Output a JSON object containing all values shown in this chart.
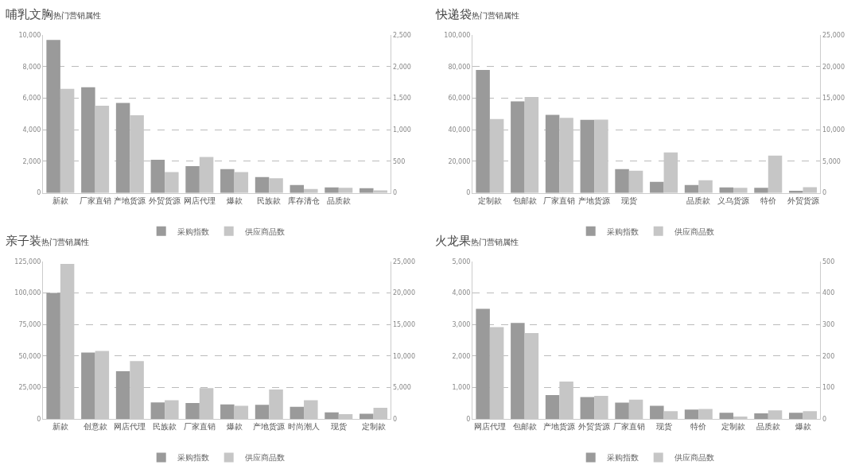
{
  "chart_data": [
    {
      "type": "bar",
      "title": "哺乳文胸",
      "subtitle": "热门营销属性",
      "categories": [
        "新款",
        "厂家直销",
        "产地货源",
        "外贸货源",
        "网店代理",
        "爆款",
        "民族款",
        "库存清仓",
        "品质款",
        null
      ],
      "series": [
        {
          "name": "采购指数",
          "color": "#9a9a9a",
          "values": [
            9700,
            6700,
            5700,
            2100,
            1700,
            1500,
            1000,
            500,
            350,
            300
          ]
        },
        {
          "name": "供应商品数",
          "color": "#c6c6c6",
          "axis": "y2",
          "values": [
            1650,
            1380,
            1230,
            330,
            570,
            330,
            230,
            60,
            80,
            40
          ]
        }
      ],
      "ylim": [
        0,
        10000
      ],
      "yticks": [
        0,
        {
          "value": 2000,
          "label": "2,000"
        },
        {
          "value": 4000,
          "label": "4,000"
        },
        {
          "value": 6000,
          "label": "6,000"
        },
        {
          "value": 8000,
          "label": "8,000"
        },
        {
          "value": 10000,
          "label": "10,000"
        }
      ],
      "y2lim": [
        0,
        2500
      ],
      "y2ticks": [
        0,
        500,
        {
          "value": 1000,
          "label": "1,000"
        },
        {
          "value": 1500,
          "label": "1,500"
        },
        {
          "value": 2000,
          "label": "2,000"
        },
        {
          "value": 2500,
          "label": "2,500"
        }
      ],
      "grid": "y",
      "legend": "bottom"
    },
    {
      "type": "bar",
      "title": "快递袋",
      "subtitle": "热门营销属性",
      "categories": [
        "定制款",
        "包邮款",
        "厂家直销",
        "产地货源",
        "现货",
        null,
        "品质款",
        "义乌货源",
        "特价",
        "外贸货源"
      ],
      "series": [
        {
          "name": "采购指数",
          "color": "#9a9a9a",
          "values": [
            78000,
            58000,
            49500,
            46300,
            15000,
            7000,
            5000,
            3500,
            3200,
            1300
          ]
        },
        {
          "name": "供应商品数",
          "color": "#c6c6c6",
          "axis": "y2",
          "values": [
            11700,
            15200,
            11900,
            11600,
            3500,
            6400,
            2000,
            800,
            5900,
            900
          ]
        }
      ],
      "ylim": [
        0,
        100000
      ],
      "yticks": [
        0,
        {
          "value": 20000,
          "label": "20,000"
        },
        {
          "value": 40000,
          "label": "40,000"
        },
        {
          "value": 60000,
          "label": "60,000"
        },
        {
          "value": 80000,
          "label": "80,000"
        },
        {
          "value": 100000,
          "label": "100,000"
        }
      ],
      "y2lim": [
        0,
        25000
      ],
      "y2ticks": [
        0,
        {
          "value": 5000,
          "label": "5,000"
        },
        {
          "value": 10000,
          "label": "10,000"
        },
        {
          "value": 15000,
          "label": "15,000"
        },
        {
          "value": 20000,
          "label": "20,000"
        },
        {
          "value": 25000,
          "label": "25,000"
        }
      ],
      "grid": "y",
      "legend": "bottom"
    },
    {
      "type": "bar",
      "title": "亲子装",
      "subtitle": "热门营销属性",
      "categories": [
        "新款",
        "创意款",
        "网店代理",
        "民族款",
        "厂家直销",
        "爆款",
        "产地货源",
        "时尚潮人",
        "现货",
        "定制款"
      ],
      "series": [
        {
          "name": "采购指数",
          "color": "#9a9a9a",
          "values": [
            100000,
            52800,
            38000,
            13300,
            12700,
            11700,
            11300,
            9700,
            5300,
            4200
          ]
        },
        {
          "name": "供应商品数",
          "color": "#c6c6c6",
          "axis": "y2",
          "values": [
            24600,
            10800,
            9200,
            3000,
            4900,
            2100,
            4700,
            3000,
            800,
            1800
          ]
        }
      ],
      "ylim": [
        0,
        125000
      ],
      "yticks": [
        0,
        {
          "value": 25000,
          "label": "25,000"
        },
        {
          "value": 50000,
          "label": "50,000"
        },
        {
          "value": 75000,
          "label": "75,000"
        },
        {
          "value": 100000,
          "label": "100,000"
        },
        {
          "value": 125000,
          "label": "125,000"
        }
      ],
      "y2lim": [
        0,
        25000
      ],
      "y2ticks": [
        0,
        {
          "value": 5000,
          "label": "5,000"
        },
        {
          "value": 10000,
          "label": "10,000"
        },
        {
          "value": 15000,
          "label": "15,000"
        },
        {
          "value": 20000,
          "label": "20,000"
        },
        {
          "value": 25000,
          "label": "25,000"
        }
      ],
      "grid": "y",
      "legend": "bottom"
    },
    {
      "type": "bar",
      "title": "火龙果",
      "subtitle": "热门营销属性",
      "categories": [
        "网店代理",
        "包邮款",
        "产地货源",
        "外贸货源",
        "厂家直销",
        "现货",
        "特价",
        "定制款",
        "品质款",
        "爆款"
      ],
      "series": [
        {
          "name": "采购指数",
          "color": "#9a9a9a",
          "values": [
            3500,
            3050,
            760,
            700,
            520,
            420,
            300,
            200,
            180,
            200
          ]
        },
        {
          "name": "供应商品数",
          "color": "#c6c6c6",
          "axis": "y2",
          "values": [
            292,
            273,
            119,
            74,
            62,
            25,
            32,
            8,
            28,
            25
          ]
        }
      ],
      "ylim": [
        0,
        5000
      ],
      "yticks": [
        0,
        {
          "value": 1000,
          "label": "1,000"
        },
        {
          "value": 2000,
          "label": "2,000"
        },
        {
          "value": 3000,
          "label": "3,000"
        },
        {
          "value": 4000,
          "label": "4,000"
        },
        {
          "value": 5000,
          "label": "5,000"
        }
      ],
      "y2lim": [
        0,
        500
      ],
      "y2ticks": [
        0,
        100,
        200,
        300,
        400,
        500
      ],
      "grid": "y",
      "legend": "bottom"
    }
  ]
}
